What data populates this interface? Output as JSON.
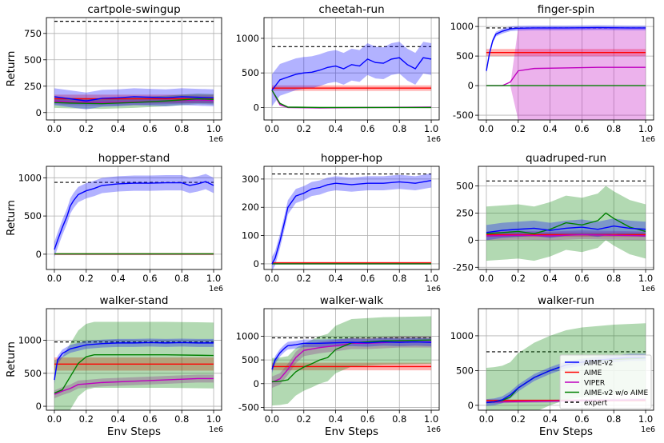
{
  "figure": {
    "xlabel": "Env Steps",
    "ylabel": "Return",
    "x_multiplier": "1e6",
    "x_ticks": [
      0.0,
      0.2,
      0.4,
      0.6,
      0.8,
      1.0
    ],
    "x_tick_labels": [
      "0.0",
      "0.2",
      "0.4",
      "0.6",
      "0.8",
      "1.0"
    ]
  },
  "legend": {
    "location": "lower-right of walker-run panel",
    "entries": [
      {
        "name": "AIME-v2",
        "color": "#0000ff",
        "style": "solid"
      },
      {
        "name": "AIME",
        "color": "#ff0000",
        "style": "solid"
      },
      {
        "name": "VIPER",
        "color": "#bf00bf",
        "style": "solid"
      },
      {
        "name": "AIME-v2 w/o AIME",
        "color": "#008000",
        "style": "solid"
      },
      {
        "name": "expert",
        "color": "#000000",
        "style": "dashed"
      }
    ]
  },
  "chart_data": [
    {
      "type": "line",
      "title": "cartpole-swingup",
      "ylim": [
        -70,
        900
      ],
      "yticks": [
        0,
        250,
        500,
        750
      ],
      "expert": 865,
      "series": [
        {
          "name": "AIME",
          "x": [
            0,
            1
          ],
          "y": [
            130,
            130
          ],
          "band": 40
        },
        {
          "name": "VIPER",
          "x": [
            0,
            0.1,
            0.3,
            0.5,
            0.7,
            0.9,
            1.0
          ],
          "y": [
            110,
            100,
            95,
            100,
            110,
            120,
            115
          ],
          "band": 30
        },
        {
          "name": "AIME-v2 w/o AIME",
          "x": [
            0,
            0.1,
            0.3,
            0.5,
            0.7,
            0.9,
            1.0
          ],
          "y": [
            95,
            90,
            85,
            95,
            110,
            130,
            125
          ],
          "band": 50
        },
        {
          "name": "AIME-v2",
          "x": [
            0,
            0.1,
            0.2,
            0.3,
            0.4,
            0.5,
            0.6,
            0.7,
            0.8,
            0.9,
            1.0
          ],
          "y": [
            150,
            130,
            110,
            135,
            140,
            150,
            145,
            140,
            150,
            145,
            140
          ],
          "band": 80
        }
      ]
    },
    {
      "type": "line",
      "title": "cheetah-run",
      "ylim": [
        -180,
        1300
      ],
      "yticks": [
        0,
        500,
        1000
      ],
      "expert": 880,
      "series": [
        {
          "name": "AIME",
          "x": [
            0,
            1
          ],
          "y": [
            280,
            280
          ],
          "band": 40
        },
        {
          "name": "VIPER",
          "x": [
            0,
            0.05,
            0.1,
            0.3,
            0.6,
            1.0
          ],
          "y": [
            250,
            40,
            0,
            -5,
            0,
            5
          ],
          "band": 10
        },
        {
          "name": "AIME-v2 w/o AIME",
          "x": [
            0,
            0.05,
            0.1,
            0.3,
            0.6,
            1.0
          ],
          "y": [
            250,
            60,
            5,
            0,
            0,
            0
          ],
          "band": 10
        },
        {
          "name": "AIME-v2",
          "x": [
            0,
            0.02,
            0.05,
            0.1,
            0.15,
            0.2,
            0.25,
            0.3,
            0.35,
            0.4,
            0.45,
            0.5,
            0.55,
            0.6,
            0.65,
            0.7,
            0.75,
            0.8,
            0.85,
            0.9,
            0.95,
            1.0
          ],
          "y": [
            250,
            310,
            400,
            440,
            480,
            500,
            510,
            540,
            580,
            600,
            560,
            620,
            600,
            700,
            650,
            640,
            700,
            720,
            620,
            560,
            720,
            700
          ],
          "band": 230
        }
      ]
    },
    {
      "type": "line",
      "title": "finger-spin",
      "ylim": [
        -580,
        1150
      ],
      "yticks": [
        -500,
        0,
        500,
        1000
      ],
      "expert": 975,
      "series": [
        {
          "name": "AIME",
          "x": [
            0,
            1
          ],
          "y": [
            560,
            560
          ],
          "band": 60
        },
        {
          "name": "VIPER",
          "x": [
            0,
            0.05,
            0.1,
            0.15,
            0.2,
            0.3,
            0.5,
            0.7,
            1.0
          ],
          "y": [
            0,
            0,
            0,
            60,
            250,
            290,
            300,
            310,
            310
          ],
          "band": 0,
          "wide_band": [
            [
              0.15,
              0
            ],
            [
              0.2,
              980
            ],
            [
              1.0,
              980
            ]
          ]
        },
        {
          "name": "AIME-v2 w/o AIME",
          "x": [
            0,
            0.2,
            0.4,
            0.6,
            0.8,
            1.0
          ],
          "y": [
            0,
            0,
            0,
            0,
            0,
            0
          ],
          "band": 5
        },
        {
          "name": "AIME-v2",
          "x": [
            0,
            0.02,
            0.04,
            0.06,
            0.1,
            0.15,
            0.2,
            0.3,
            0.5,
            0.7,
            0.9,
            1.0
          ],
          "y": [
            250,
            550,
            760,
            870,
            920,
            960,
            970,
            975,
            975,
            980,
            975,
            975
          ],
          "band": 40
        }
      ]
    },
    {
      "type": "line",
      "title": "hopper-stand",
      "ylim": [
        -200,
        1150
      ],
      "yticks": [
        0,
        500,
        1000
      ],
      "expert": 940,
      "series": [
        {
          "name": "AIME",
          "x": [
            0,
            1
          ],
          "y": [
            2,
            2
          ],
          "band": 15
        },
        {
          "name": "VIPER",
          "x": [
            0,
            1
          ],
          "y": [
            2,
            2
          ],
          "band": 3
        },
        {
          "name": "AIME-v2 w/o AIME",
          "x": [
            0,
            1
          ],
          "y": [
            4,
            4
          ],
          "band": 4
        },
        {
          "name": "AIME-v2",
          "x": [
            0,
            0.02,
            0.05,
            0.08,
            0.1,
            0.12,
            0.15,
            0.2,
            0.25,
            0.3,
            0.35,
            0.4,
            0.5,
            0.6,
            0.7,
            0.8,
            0.85,
            0.9,
            0.95,
            1.0
          ],
          "y": [
            60,
            180,
            350,
            500,
            630,
            700,
            780,
            830,
            860,
            900,
            910,
            920,
            930,
            930,
            935,
            935,
            900,
            920,
            950,
            900
          ],
          "band": 100
        }
      ]
    },
    {
      "type": "line",
      "title": "hopper-hop",
      "ylim": [
        -20,
        345
      ],
      "yticks": [
        0,
        100,
        200,
        300
      ],
      "expert": 318,
      "series": [
        {
          "name": "AIME",
          "x": [
            0,
            1
          ],
          "y": [
            3,
            3
          ],
          "band": 4
        },
        {
          "name": "VIPER",
          "x": [
            0,
            1
          ],
          "y": [
            0,
            0
          ],
          "band": 1
        },
        {
          "name": "AIME-v2 w/o AIME",
          "x": [
            0,
            1
          ],
          "y": [
            0,
            0
          ],
          "band": 1
        },
        {
          "name": "AIME-v2",
          "x": [
            0,
            0.02,
            0.05,
            0.08,
            0.1,
            0.15,
            0.2,
            0.25,
            0.3,
            0.35,
            0.4,
            0.5,
            0.6,
            0.7,
            0.8,
            0.9,
            1.0
          ],
          "y": [
            0,
            20,
            80,
            150,
            200,
            240,
            250,
            265,
            270,
            280,
            285,
            280,
            285,
            285,
            290,
            285,
            295
          ],
          "band": 25
        }
      ]
    },
    {
      "type": "line",
      "title": "quadruped-run",
      "ylim": [
        -270,
        680
      ],
      "yticks": [
        -250,
        0,
        250,
        500
      ],
      "expert": 545,
      "series": [
        {
          "name": "AIME",
          "x": [
            0,
            1
          ],
          "y": [
            50,
            50
          ],
          "band": 20
        },
        {
          "name": "VIPER",
          "x": [
            0,
            0.2,
            0.4,
            0.6,
            0.8,
            1.0
          ],
          "y": [
            40,
            45,
            40,
            50,
            45,
            40
          ],
          "band": 40
        },
        {
          "name": "AIME-v2 w/o AIME",
          "x": [
            0,
            0.1,
            0.2,
            0.3,
            0.4,
            0.5,
            0.6,
            0.7,
            0.75,
            0.8,
            0.9,
            1.0
          ],
          "y": [
            60,
            70,
            80,
            60,
            100,
            160,
            140,
            180,
            250,
            200,
            120,
            80
          ],
          "band": 250
        },
        {
          "name": "AIME-v2",
          "x": [
            0,
            0.1,
            0.2,
            0.3,
            0.4,
            0.5,
            0.6,
            0.7,
            0.8,
            0.9,
            1.0
          ],
          "y": [
            70,
            90,
            100,
            110,
            90,
            110,
            120,
            100,
            130,
            110,
            100
          ],
          "band": 70
        }
      ]
    },
    {
      "type": "line",
      "title": "walker-stand",
      "ylim": [
        -60,
        1480
      ],
      "yticks": [
        0,
        500,
        1000
      ],
      "expert": 975,
      "series": [
        {
          "name": "AIME",
          "x": [
            0,
            1
          ],
          "y": [
            640,
            640
          ],
          "band": 100
        },
        {
          "name": "VIPER",
          "x": [
            0,
            0.05,
            0.1,
            0.15,
            0.2,
            0.3,
            0.5,
            0.7,
            0.9,
            1.0
          ],
          "y": [
            180,
            230,
            270,
            330,
            340,
            360,
            380,
            400,
            420,
            420
          ],
          "band": 60
        },
        {
          "name": "AIME-v2 w/o AIME",
          "x": [
            0,
            0.05,
            0.1,
            0.15,
            0.2,
            0.25,
            0.3,
            0.5,
            0.7,
            1.0
          ],
          "y": [
            200,
            250,
            450,
            650,
            750,
            780,
            780,
            780,
            780,
            770
          ],
          "band": 500
        },
        {
          "name": "AIME-v2",
          "x": [
            0,
            0.02,
            0.05,
            0.1,
            0.15,
            0.2,
            0.3,
            0.4,
            0.5,
            0.6,
            0.7,
            0.8,
            0.9,
            1.0
          ],
          "y": [
            400,
            700,
            800,
            870,
            900,
            930,
            950,
            960,
            960,
            965,
            960,
            965,
            960,
            960
          ],
          "band": 60
        }
      ]
    },
    {
      "type": "line",
      "title": "walker-walk",
      "ylim": [
        -560,
        1580
      ],
      "yticks": [
        -500,
        0,
        500,
        1000
      ],
      "expert": 965,
      "series": [
        {
          "name": "AIME",
          "x": [
            0,
            1
          ],
          "y": [
            360,
            360
          ],
          "band": 80
        },
        {
          "name": "VIPER",
          "x": [
            0,
            0.05,
            0.1,
            0.15,
            0.2,
            0.3,
            0.4,
            0.5,
            0.6,
            0.8,
            1.0
          ],
          "y": [
            30,
            100,
            300,
            550,
            700,
            760,
            800,
            850,
            850,
            880,
            880
          ],
          "band": 120
        },
        {
          "name": "AIME-v2 w/o AIME",
          "x": [
            0,
            0.05,
            0.1,
            0.15,
            0.2,
            0.25,
            0.3,
            0.35,
            0.4,
            0.5,
            0.7,
            1.0
          ],
          "y": [
            40,
            50,
            80,
            250,
            350,
            420,
            500,
            550,
            720,
            860,
            900,
            920
          ],
          "band": 500
        },
        {
          "name": "AIME-v2",
          "x": [
            0,
            0.02,
            0.05,
            0.08,
            0.1,
            0.15,
            0.2,
            0.3,
            0.4,
            0.5,
            0.6,
            0.7,
            0.8,
            0.9,
            1.0
          ],
          "y": [
            300,
            500,
            650,
            750,
            800,
            820,
            850,
            850,
            860,
            870,
            860,
            880,
            870,
            880,
            870
          ],
          "band": 80
        }
      ]
    },
    {
      "type": "line",
      "title": "walker-run",
      "ylim": [
        -70,
        1390
      ],
      "yticks": [
        0,
        500,
        1000
      ],
      "expert": 770,
      "series": [
        {
          "name": "AIME",
          "x": [
            0,
            1
          ],
          "y": [
            70,
            70
          ],
          "band": 15
        },
        {
          "name": "VIPER",
          "x": [
            0,
            0.2,
            0.4,
            0.6,
            0.8,
            1.0
          ],
          "y": [
            45,
            55,
            60,
            70,
            75,
            80
          ],
          "band": 20
        },
        {
          "name": "AIME-v2 w/o AIME",
          "x": [
            0,
            0.05,
            0.1,
            0.15,
            0.2,
            0.3,
            0.4,
            0.5,
            0.6,
            0.7,
            0.8,
            0.9,
            1.0
          ],
          "y": [
            40,
            50,
            70,
            120,
            250,
            400,
            500,
            580,
            620,
            640,
            660,
            670,
            680
          ],
          "band": 500
        },
        {
          "name": "AIME-v2",
          "x": [
            0,
            0.05,
            0.1,
            0.15,
            0.2,
            0.3,
            0.4,
            0.5,
            0.6,
            0.7,
            0.8,
            0.9,
            1.0
          ],
          "y": [
            40,
            50,
            80,
            150,
            250,
            400,
            500,
            580,
            620,
            650,
            670,
            690,
            690
          ],
          "band": 50
        }
      ]
    }
  ]
}
